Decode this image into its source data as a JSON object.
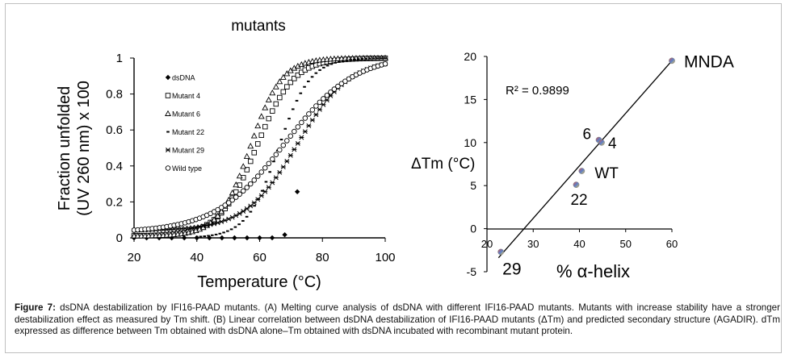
{
  "chart_data": [
    {
      "type": "scatter",
      "title": "mutants",
      "xlabel": "Temperature (°C)",
      "ylabel_lines": [
        "Fraction unfolded",
        "(UV 260 nm) x 100"
      ],
      "xlim": [
        20,
        100
      ],
      "ylim": [
        0,
        1
      ],
      "x_ticks": [
        "20",
        "40",
        "60",
        "80",
        "100"
      ],
      "y_ticks": [
        "0",
        "0.2",
        "0.4",
        "0.6",
        "0.8",
        "1"
      ],
      "legend_position": "left-inside",
      "series": [
        {
          "name": "dsDNA",
          "marker": "diamond",
          "x_range": [
            20,
            72
          ],
          "tm": 71.5,
          "k": 0.9,
          "lower": 0.0,
          "upper": 0.42,
          "n": 14
        },
        {
          "name": "Mutant 4",
          "marker": "square",
          "x_range": [
            20,
            100
          ],
          "tm": 59,
          "k": 0.17,
          "lower": 0.01,
          "upper": 1.0,
          "n": 70
        },
        {
          "name": "Mutant 6",
          "marker": "triangle",
          "x_range": [
            20,
            100
          ],
          "tm": 57,
          "k": 0.2,
          "lower": 0.01,
          "upper": 1.0,
          "n": 70
        },
        {
          "name": "Mutant 22",
          "marker": "dash",
          "x_range": [
            40,
            100
          ],
          "tm": 66,
          "k": 0.2,
          "lower": 0.0,
          "upper": 1.0,
          "n": 50
        },
        {
          "name": "Mutant 29",
          "marker": "x",
          "x_range": [
            20,
            100
          ],
          "tm": 72,
          "k": 0.12,
          "lower": 0.04,
          "upper": 1.0,
          "n": 70
        },
        {
          "name": "Wild type",
          "marker": "circle",
          "x_range": [
            20,
            100
          ],
          "tm": 68,
          "k": 0.09,
          "lower": 0.03,
          "upper": 1.02,
          "n": 70
        }
      ]
    },
    {
      "type": "scatter",
      "xlabel": "% α-helix",
      "ylabel": "ΔTm (°C)",
      "xlim": [
        20,
        60
      ],
      "ylim": [
        -5,
        20
      ],
      "x_ticks": [
        "20",
        "30",
        "40",
        "50",
        "60"
      ],
      "y_ticks": [
        "-5",
        "0",
        "5",
        "10",
        "15",
        "20"
      ],
      "annotation": "R² = 0.9899",
      "trendline": {
        "slope": 0.61,
        "intercept": -17.1
      },
      "points": [
        {
          "label": "MNDA",
          "x": 60,
          "y": 19.5
        },
        {
          "label": "6",
          "x": 44.2,
          "y": 10.3
        },
        {
          "label": "4",
          "x": 44.8,
          "y": 10.0
        },
        {
          "label": "WT",
          "x": 40.5,
          "y": 6.7
        },
        {
          "label": "22",
          "x": 39.3,
          "y": 5.1
        },
        {
          "label": "29",
          "x": 23,
          "y": -2.7
        }
      ]
    }
  ],
  "caption": {
    "label": "Figure 7:",
    "text": " dsDNA destabilization by IFI16-PAAD mutants. (A) Melting curve analysis of dsDNA with different IFI16-PAAD mutants.  Mutants with increase stability have a stronger destabilization effect as measured by Tm shift. (B) Linear correlation between dsDNA destabilization of IFI16-PAAD mutants (ΔTm) and predicted secondary structure (AGADIR). dTm expressed as difference between Tm obtained with dsDNA alone–Tm obtained with dsDNA incubated with recombinant mutant protein."
  },
  "colors": {
    "marker": "#000000",
    "point_fill_a": "#d9534f",
    "point_fill_b": "#5b7fc7",
    "point_fill_c": "#e8c45a"
  }
}
